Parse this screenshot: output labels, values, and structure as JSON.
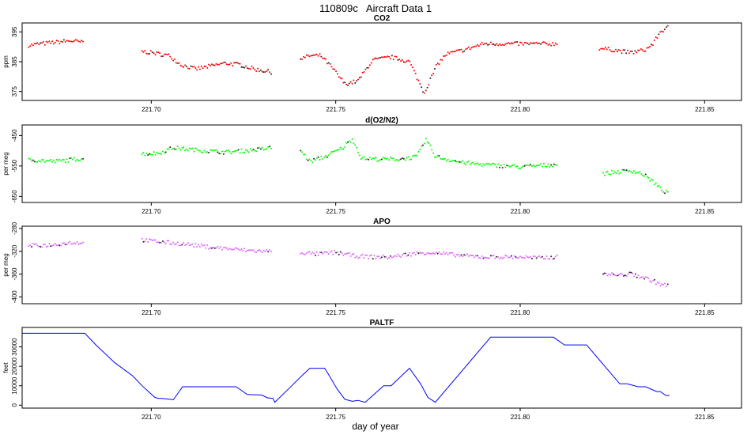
{
  "figure": {
    "title": "110809c   Aircraft Data 1",
    "xlabel": "day of year"
  },
  "chart_data": [
    {
      "type": "scatter",
      "title": "CO2",
      "ylabel": "ppm",
      "color": "#ff0000",
      "xlim": [
        221.665,
        221.86
      ],
      "ylim": [
        372,
        398
      ],
      "xticks": [
        221.7,
        221.75,
        221.8,
        221.85
      ],
      "xtick_labels": [
        "221.70",
        "221.75",
        "221.80",
        "221.85"
      ],
      "yticks": [
        375,
        385,
        395
      ],
      "ytick_labels": [
        "375",
        "385",
        "395"
      ],
      "segments": [
        {
          "x": [
            221.6668,
            221.67,
            221.674,
            221.678,
            221.6815
          ],
          "y": [
            390.5,
            391.0,
            391.5,
            392.0,
            391.5
          ]
        },
        {
          "x": [
            221.6975,
            221.7,
            221.705,
            221.708,
            221.712,
            221.716,
            221.72,
            221.724,
            221.728,
            221.7325
          ],
          "y": [
            388.5,
            388.0,
            387.0,
            384.0,
            382.5,
            383.5,
            384.5,
            384.0,
            382.5,
            381.5
          ]
        },
        {
          "x": [
            221.7405,
            221.743,
            221.746,
            221.749,
            221.7525,
            221.756,
            221.76,
            221.765,
            221.77,
            221.774,
            221.7775,
            221.78,
            221.785,
            221.79,
            221.8,
            221.81
          ],
          "y": [
            386.0,
            387.0,
            387.0,
            383.0,
            377.5,
            378.5,
            385.5,
            386.5,
            385.0,
            374.5,
            384.0,
            387.5,
            389.0,
            391.0,
            391.0,
            391.0
          ]
        },
        {
          "x": [
            221.8215,
            221.825,
            221.83,
            221.834,
            221.836,
            221.838,
            221.84
          ],
          "y": [
            389.5,
            389.0,
            388.0,
            389.0,
            391.0,
            395.0,
            396.5
          ]
        }
      ]
    },
    {
      "type": "scatter",
      "title": "d(O2/N2)",
      "ylabel": "per meg",
      "color": "#00ff00",
      "xlim": [
        221.665,
        221.86
      ],
      "ylim": [
        -670,
        -415
      ],
      "xticks": [
        221.7,
        221.75,
        221.8,
        221.85
      ],
      "xtick_labels": [
        "221.70",
        "221.75",
        "221.80",
        "221.85"
      ],
      "yticks": [
        -650,
        -550,
        -450
      ],
      "ytick_labels": [
        "-650",
        "-550",
        "-450"
      ],
      "segments": [
        {
          "x": [
            221.6668,
            221.67,
            221.674,
            221.678,
            221.6815
          ],
          "y": [
            -530,
            -532,
            -535,
            -530,
            -525
          ]
        },
        {
          "x": [
            221.6975,
            221.702,
            221.706,
            221.71,
            221.715,
            221.72,
            221.725,
            221.73,
            221.7325
          ],
          "y": [
            -510,
            -508,
            -490,
            -495,
            -500,
            -505,
            -500,
            -495,
            -490
          ]
        },
        {
          "x": [
            221.7405,
            221.743,
            221.747,
            221.752,
            221.7545,
            221.757,
            221.762,
            221.767,
            221.772,
            221.7745,
            221.777,
            221.78,
            221.785,
            221.79,
            221.8,
            221.81
          ],
          "y": [
            -500,
            -535,
            -520,
            -490,
            -460,
            -525,
            -528,
            -528,
            -520,
            -462,
            -518,
            -528,
            -540,
            -545,
            -553,
            -545
          ]
        },
        {
          "x": [
            221.8225,
            221.826,
            221.83,
            221.833,
            221.836,
            221.838,
            221.84
          ],
          "y": [
            -575,
            -570,
            -565,
            -575,
            -600,
            -625,
            -640
          ]
        }
      ]
    },
    {
      "type": "scatter",
      "title": "APO",
      "ylabel": "per meg",
      "color": "#e066ff",
      "xlim": [
        221.665,
        221.86
      ],
      "ylim": [
        -412,
        -276
      ],
      "xticks": [
        221.7,
        221.75,
        221.8,
        221.85
      ],
      "xtick_labels": [
        "221.70",
        "221.75",
        "221.80",
        "221.85"
      ],
      "yticks": [
        -400,
        -360,
        -320,
        -280
      ],
      "ytick_labels": [
        "-400",
        "-360",
        "-320",
        "-280"
      ],
      "segments": [
        {
          "x": [
            221.6668,
            221.67,
            221.674,
            221.678,
            221.6815
          ],
          "y": [
            -310,
            -310,
            -308,
            -305,
            -305
          ]
        },
        {
          "x": [
            221.6975,
            221.7,
            221.705,
            221.71,
            221.715,
            221.72,
            221.725,
            221.73,
            221.7325
          ],
          "y": [
            -300,
            -302,
            -305,
            -308,
            -312,
            -315,
            -318,
            -320,
            -320
          ]
        },
        {
          "x": [
            221.7405,
            221.745,
            221.75,
            221.755,
            221.76,
            221.765,
            221.77,
            221.775,
            221.78,
            221.785,
            221.79,
            221.795,
            221.8,
            221.805,
            221.81
          ],
          "y": [
            -322,
            -325,
            -322,
            -328,
            -330,
            -330,
            -325,
            -322,
            -325,
            -328,
            -330,
            -330,
            -330,
            -332,
            -330
          ]
        },
        {
          "x": [
            221.8225,
            221.826,
            221.83,
            221.833,
            221.836,
            221.838,
            221.84
          ],
          "y": [
            -358,
            -362,
            -360,
            -365,
            -372,
            -378,
            -380
          ]
        }
      ]
    },
    {
      "type": "line",
      "title": "PALTF",
      "ylabel": "feet",
      "color": "#0000ff",
      "xlim": [
        221.665,
        221.86
      ],
      "ylim": [
        -1500,
        40000
      ],
      "xticks": [
        221.7,
        221.75,
        221.8,
        221.85
      ],
      "xtick_labels": [
        "221.70",
        "221.75",
        "221.80",
        "221.85"
      ],
      "yticks": [
        0,
        10000,
        20000,
        30000
      ],
      "ytick_labels": [
        "0",
        "10000",
        "20000",
        "30000"
      ],
      "x": [
        221.665,
        221.682,
        221.685,
        221.69,
        221.695,
        221.6975,
        221.701,
        221.702,
        221.703,
        221.706,
        221.7085,
        221.718,
        221.721,
        221.723,
        221.726,
        221.73,
        221.7315,
        221.733,
        221.7335,
        221.737,
        221.741,
        221.743,
        221.747,
        221.748,
        221.7505,
        221.7525,
        221.7545,
        221.756,
        221.758,
        221.763,
        221.765,
        221.77,
        221.773,
        221.775,
        221.777,
        221.792,
        221.797,
        221.809,
        221.812,
        221.818,
        221.827,
        221.829,
        221.832,
        221.834,
        221.837,
        221.838,
        221.8395,
        221.8405
      ],
      "y": [
        37000,
        37000,
        31000,
        22000,
        15000,
        10000,
        4000,
        3500,
        3500,
        2800,
        9500,
        9500,
        9500,
        9500,
        5500,
        5200,
        3800,
        3500,
        1500,
        8000,
        15500,
        19000,
        19000,
        16000,
        8000,
        3000,
        2000,
        2500,
        1500,
        10000,
        10000,
        19000,
        11000,
        4000,
        1500,
        35000,
        35000,
        35000,
        31000,
        31000,
        11000,
        11000,
        9500,
        9500,
        7000,
        7000,
        5000,
        5000
      ]
    }
  ]
}
